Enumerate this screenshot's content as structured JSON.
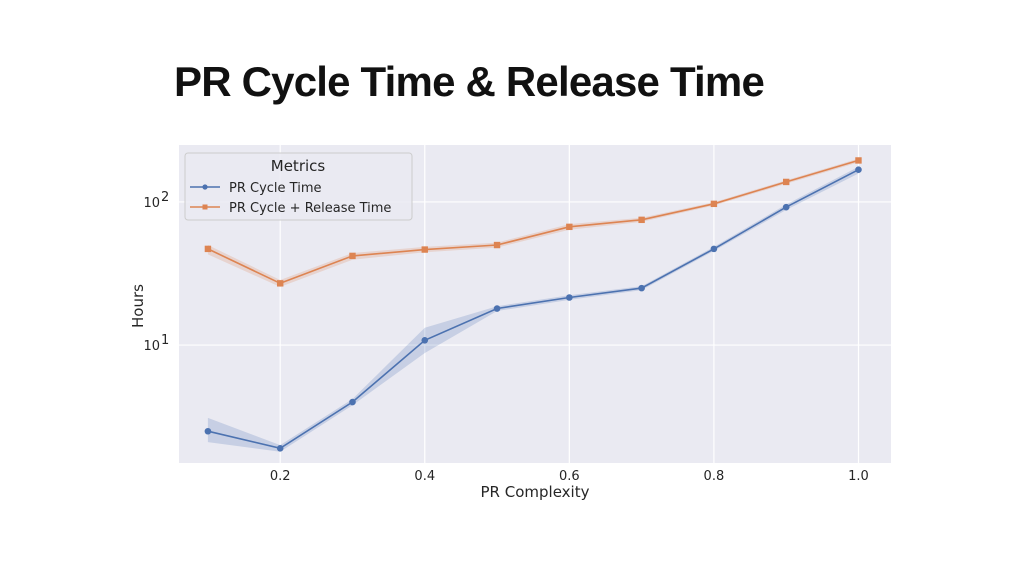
{
  "slide": {
    "title": "PR Cycle Time & Release Time"
  },
  "chart_data": {
    "type": "line",
    "title": "",
    "xlabel": "PR Complexity",
    "ylabel": "Hours",
    "x": [
      0.1,
      0.2,
      0.3,
      0.4,
      0.5,
      0.6,
      0.7,
      0.8,
      0.9,
      1.0
    ],
    "xlim": [
      0.06,
      1.045
    ],
    "xticks": [
      0.2,
      0.4,
      0.6,
      0.8,
      1.0
    ],
    "xtick_labels": [
      "0.2",
      "0.4",
      "0.6",
      "0.8",
      "1.0"
    ],
    "yscale": "log",
    "ylim": [
      1.5,
      250
    ],
    "yticks": [
      10,
      100
    ],
    "ytick_base": "10",
    "ytick_exponents": [
      "1",
      "2"
    ],
    "grid": true,
    "legend": {
      "title": "Metrics",
      "position": "top-left"
    },
    "series": [
      {
        "name": "PR Cycle Time",
        "color": "#4c72b0",
        "marker": "circle",
        "values": [
          2.5,
          1.9,
          4.0,
          10.8,
          18.0,
          21.5,
          25.0,
          47.0,
          92.0,
          168.0
        ],
        "ci_lower": [
          2.1,
          1.8,
          3.8,
          8.8,
          17.3,
          20.7,
          24.2,
          45.5,
          88.0,
          158.0
        ],
        "ci_upper": [
          3.1,
          2.0,
          4.2,
          13.2,
          18.7,
          22.3,
          25.8,
          48.5,
          96.0,
          176.0
        ]
      },
      {
        "name": "PR Cycle + Release Time",
        "color": "#dd8452",
        "marker": "square",
        "values": [
          47.0,
          27.0,
          42.0,
          46.5,
          50.0,
          67.0,
          75.0,
          97.0,
          138.0,
          195.0
        ],
        "ci_lower": [
          43.0,
          25.5,
          39.5,
          44.5,
          48.0,
          64.0,
          72.5,
          94.5,
          134.0,
          189.0
        ],
        "ci_upper": [
          50.0,
          28.5,
          44.0,
          48.5,
          52.0,
          70.0,
          77.5,
          99.5,
          142.0,
          201.0
        ]
      }
    ]
  }
}
